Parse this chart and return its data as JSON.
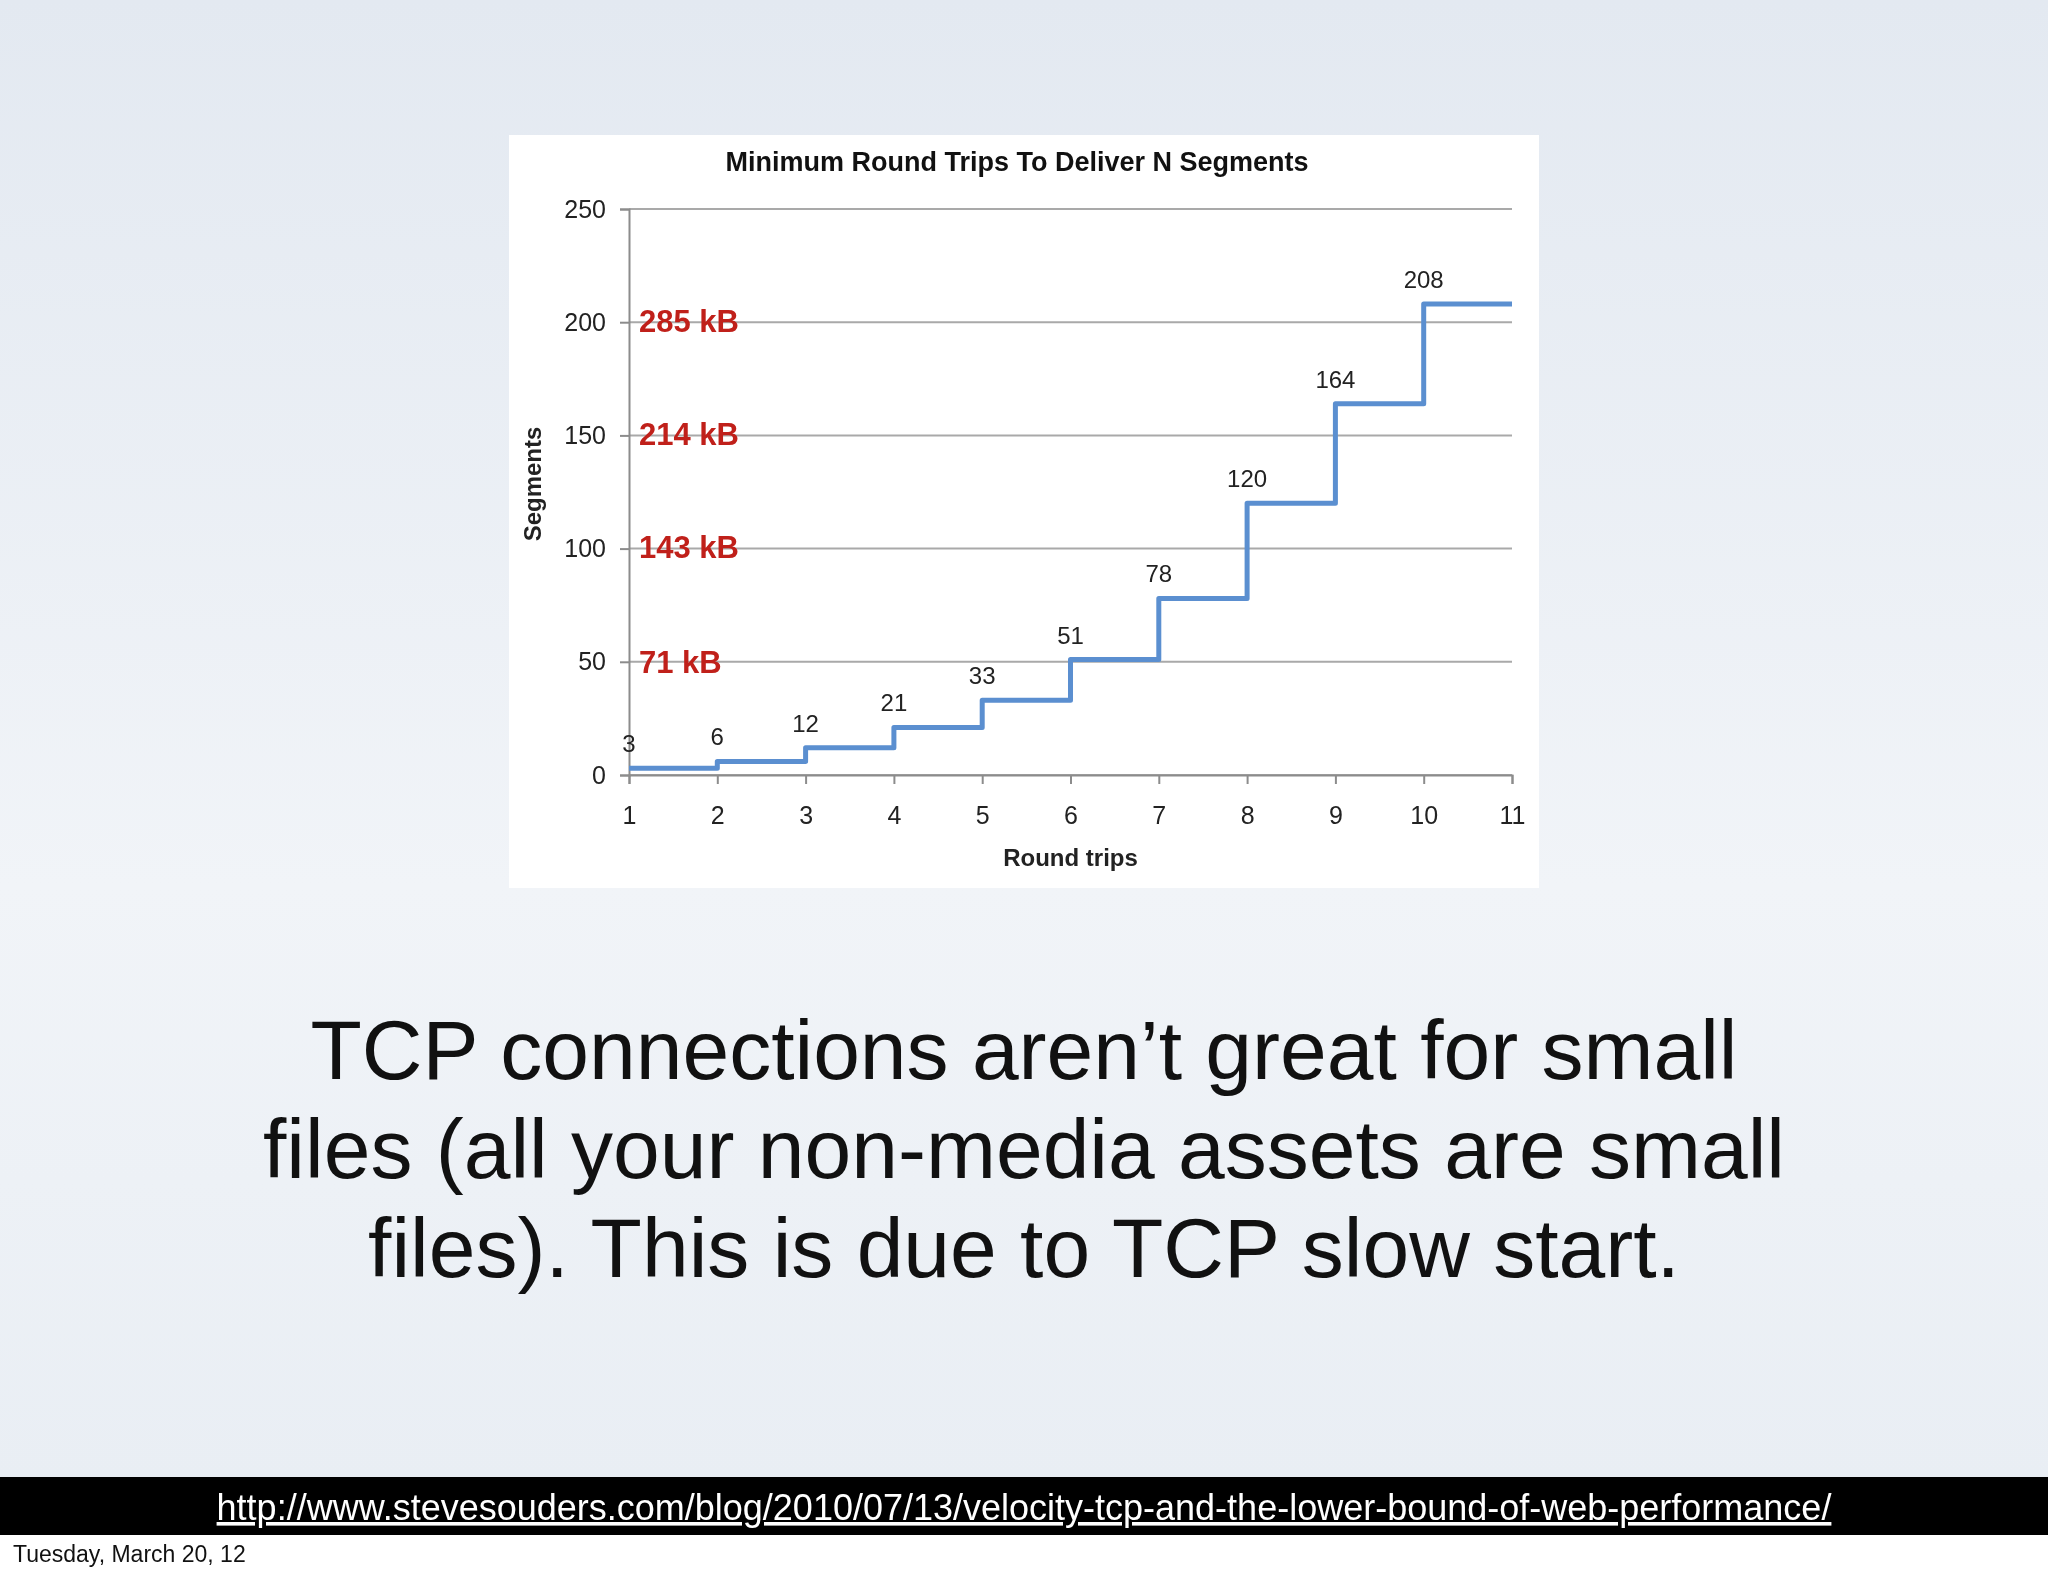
{
  "chart_data": {
    "type": "step",
    "title": "Minimum Round Trips To Deliver N Segments",
    "xlabel": "Round trips",
    "ylabel": "Segments",
    "x": [
      1,
      2,
      3,
      4,
      5,
      6,
      7,
      8,
      9,
      10,
      11
    ],
    "values": [
      3,
      6,
      12,
      21,
      33,
      51,
      78,
      120,
      164,
      208,
      208
    ],
    "value_labels": [
      "3",
      "6",
      "12",
      "21",
      "33",
      "51",
      "78",
      "120",
      "164",
      "208",
      null
    ],
    "color": "#5b8fd0",
    "xlim": [
      1,
      11
    ],
    "xticks": [
      1,
      2,
      3,
      4,
      5,
      6,
      7,
      8,
      9,
      10,
      11
    ],
    "ylim": [
      0,
      250
    ],
    "yticks": [
      0,
      50,
      100,
      150,
      200,
      250
    ],
    "y2lim": [
      0,
      356
    ],
    "y2ticks": [
      {
        "value": 71,
        "label": "71 kB"
      },
      {
        "value": 143,
        "label": "143 kB"
      },
      {
        "value": 214,
        "label": "214 kB"
      },
      {
        "value": 285,
        "label": "285 kB"
      }
    ],
    "grid": "y",
    "annotations": [
      "TCP connections aren’t great for small files (all your non-media assets are small files). This is due to TCP slow start.",
      "http://www.stevesouders.com/blog/2010/07/13/velocity-tcp-and-the-lower-bound-of-web-performance/",
      "Tuesday, March 20, 12"
    ]
  }
}
